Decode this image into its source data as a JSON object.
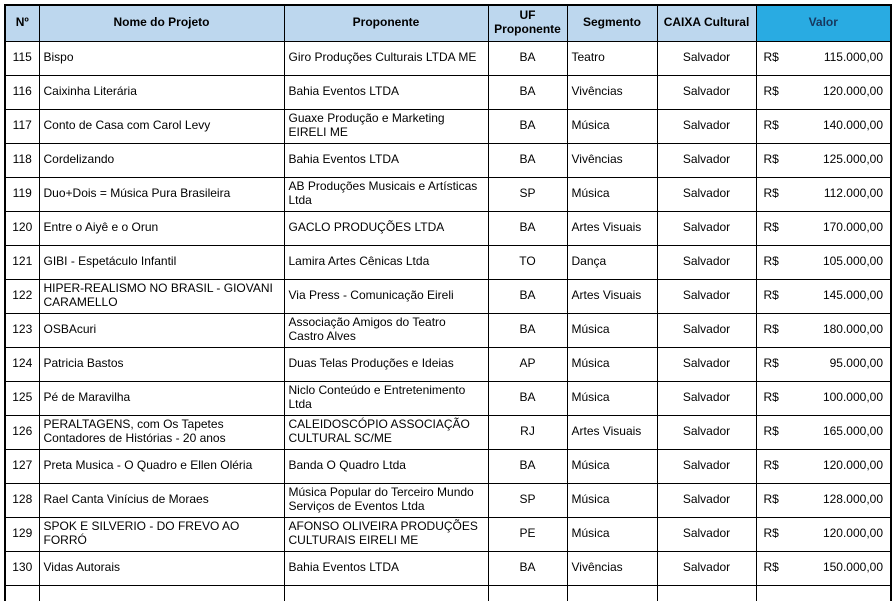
{
  "colors": {
    "header_bg": "#BDD7EE",
    "valor_header_bg": "#29ABE2",
    "valor_header_text": "#17375E",
    "border": "#000000"
  },
  "table": {
    "headers": [
      "Nº",
      "Nome do Projeto",
      "Proponente",
      "UF Proponente",
      "Segmento",
      "CAIXA Cultural",
      "Valor"
    ],
    "currency_symbol": "R$",
    "rows": [
      {
        "num": "115",
        "nome": "Bispo",
        "proponente": "Giro Produções Culturais LTDA ME",
        "uf": "BA",
        "segmento": "Teatro",
        "caixa": "Salvador",
        "valor": "115.000,00"
      },
      {
        "num": "116",
        "nome": "Caixinha Literária",
        "proponente": "Bahia Eventos LTDA",
        "uf": "BA",
        "segmento": "Vivências",
        "caixa": "Salvador",
        "valor": "120.000,00"
      },
      {
        "num": "117",
        "nome": "Conto de Casa com Carol Levy",
        "proponente": "Guaxe Produção e Marketing EIRELI ME",
        "uf": "BA",
        "segmento": "Música",
        "caixa": "Salvador",
        "valor": "140.000,00"
      },
      {
        "num": "118",
        "nome": "Cordelizando",
        "proponente": "Bahia Eventos LTDA",
        "uf": "BA",
        "segmento": "Vivências",
        "caixa": "Salvador",
        "valor": "125.000,00"
      },
      {
        "num": "119",
        "nome": "Duo+Dois = Música Pura Brasileira",
        "proponente": "AB Produções Musicais e Artísticas Ltda",
        "uf": "SP",
        "segmento": "Música",
        "caixa": "Salvador",
        "valor": "112.000,00"
      },
      {
        "num": "120",
        "nome": "Entre o Aiyê e o Orun",
        "proponente": "GACLO PRODUÇÕES LTDA",
        "uf": "BA",
        "segmento": "Artes Visuais",
        "caixa": "Salvador",
        "valor": "170.000,00"
      },
      {
        "num": "121",
        "nome": "GIBI - Espetáculo Infantil",
        "proponente": "Lamira Artes Cênicas Ltda",
        "uf": "TO",
        "segmento": "Dança",
        "caixa": "Salvador",
        "valor": "105.000,00"
      },
      {
        "num": "122",
        "nome": "HIPER-REALISMO NO BRASIL - GIOVANI CARAMELLO",
        "proponente": "Via Press - Comunicação Eireli",
        "uf": "BA",
        "segmento": "Artes Visuais",
        "caixa": "Salvador",
        "valor": "145.000,00"
      },
      {
        "num": "123",
        "nome": "OSBAcuri",
        "proponente": "Associação Amigos do Teatro Castro Alves",
        "uf": "BA",
        "segmento": "Música",
        "caixa": "Salvador",
        "valor": "180.000,00"
      },
      {
        "num": "124",
        "nome": "Patricia Bastos",
        "proponente": "Duas Telas Produções e Ideias",
        "uf": "AP",
        "segmento": "Música",
        "caixa": "Salvador",
        "valor": "95.000,00"
      },
      {
        "num": "125",
        "nome": "Pé de Maravilha",
        "proponente": "Niclo Conteúdo e Entretenimento Ltda",
        "uf": "BA",
        "segmento": "Música",
        "caixa": "Salvador",
        "valor": "100.000,00"
      },
      {
        "num": "126",
        "nome": "PERALTAGENS, com Os Tapetes Contadores de Histórias - 20 anos",
        "proponente": "CALEIDOSCÓPIO ASSOCIAÇÃO CULTURAL SC/ME",
        "uf": "RJ",
        "segmento": "Artes Visuais",
        "caixa": "Salvador",
        "valor": "165.000,00"
      },
      {
        "num": "127",
        "nome": "Preta Musica - O Quadro e Ellen Oléria",
        "proponente": "Banda O Quadro Ltda",
        "uf": "BA",
        "segmento": "Música",
        "caixa": "Salvador",
        "valor": "120.000,00"
      },
      {
        "num": "128",
        "nome": "Rael Canta Vinícius de Moraes",
        "proponente": "Música Popular do Terceiro Mundo Serviços de Eventos Ltda",
        "uf": "SP",
        "segmento": "Música",
        "caixa": "Salvador",
        "valor": "128.000,00"
      },
      {
        "num": "129",
        "nome": "SPOK E SILVERIO - DO FREVO AO FORRÓ",
        "proponente": "AFONSO OLIVEIRA PRODUÇÕES CULTURAIS EIRELI ME",
        "uf": "PE",
        "segmento": "Música",
        "caixa": "Salvador",
        "valor": "120.000,00"
      },
      {
        "num": "130",
        "nome": "Vidas Autorais",
        "proponente": "Bahia Eventos LTDA",
        "uf": "BA",
        "segmento": "Vivências",
        "caixa": "Salvador",
        "valor": "150.000,00"
      }
    ]
  }
}
